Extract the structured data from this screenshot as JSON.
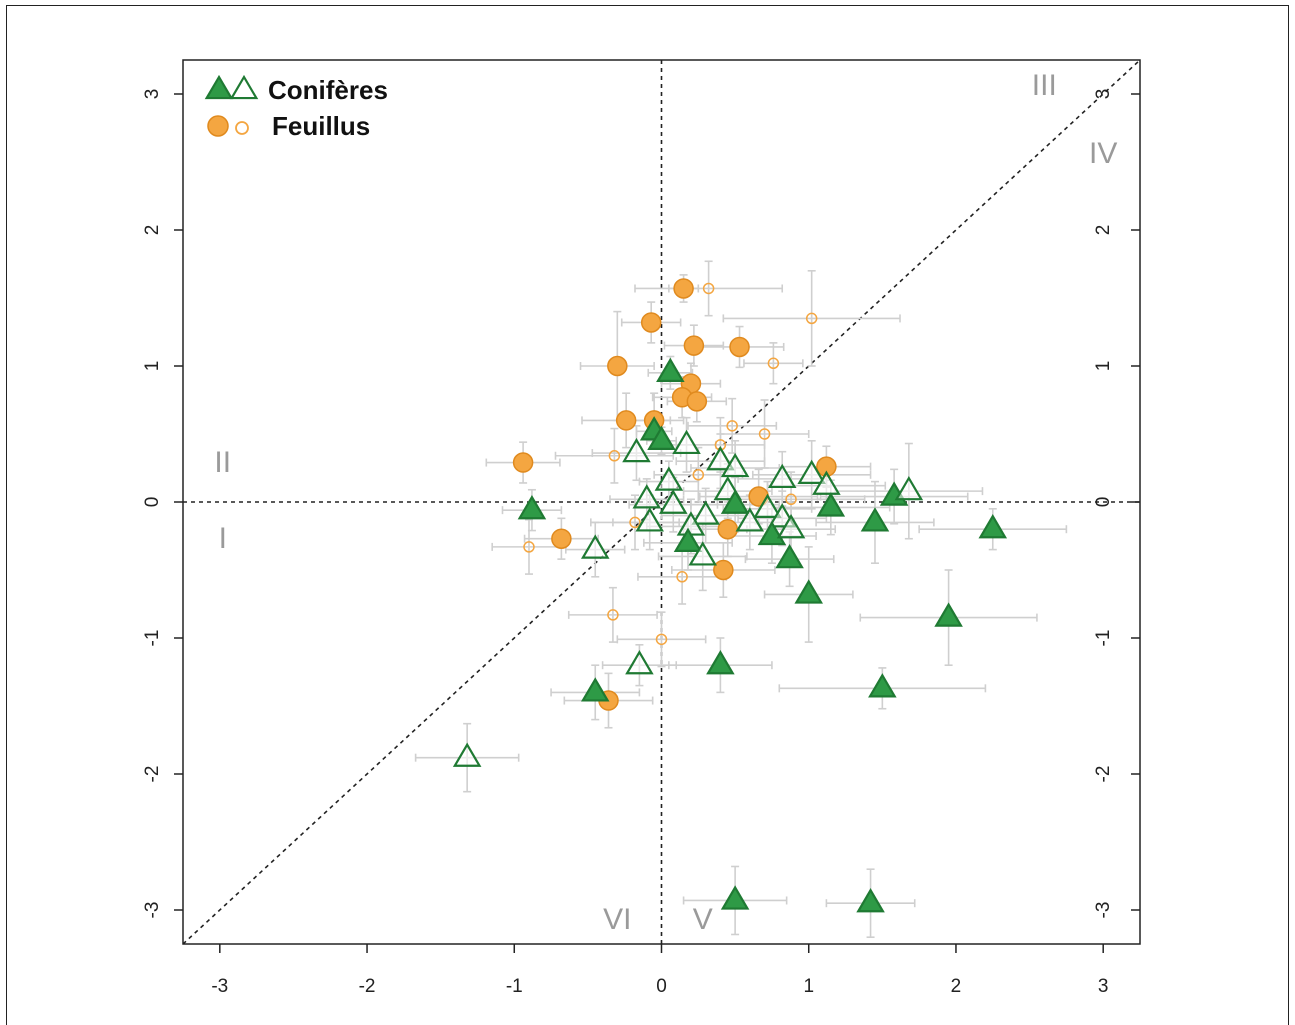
{
  "colors": {
    "conifer": "#2e9a46",
    "conifer_stroke": "#1f7a33",
    "broadleaf": "#f4a641",
    "broadleaf_stroke": "#e08a1e",
    "errorbar": "#cfcfcf",
    "axis": "#222222",
    "region": "#9a9a9a"
  },
  "chart_data": {
    "type": "scatter",
    "title": "",
    "xlabel": "",
    "ylabel": "",
    "xlim": [
      -3.25,
      3.25
    ],
    "ylim": [
      -3.25,
      3.25
    ],
    "x_ticks": [
      -3,
      -2,
      -1,
      0,
      1,
      2,
      3
    ],
    "y_ticks": [
      -3,
      -2,
      -1,
      0,
      1,
      2,
      3
    ],
    "x_tick_labels": [
      "-3",
      "-2",
      "-1",
      "0",
      "1",
      "2",
      "3"
    ],
    "y_tick_labels": [
      "-3",
      "-2",
      "-1",
      "0",
      "1",
      "2",
      "3"
    ],
    "reference_lines": {
      "horizontal_zero": true,
      "vertical_zero": true,
      "diagonal_identity": true
    },
    "grid": false,
    "legend_position": "top-left",
    "legend": [
      {
        "label": "Conifères",
        "markers": [
          "filled-triangle",
          "open-triangle"
        ]
      },
      {
        "label": "Feuillus",
        "markers": [
          "filled-circle",
          "open-circle"
        ]
      }
    ],
    "region_labels": [
      {
        "label": "I",
        "x": -2.98,
        "y": -0.28
      },
      {
        "label": "II",
        "x": -2.98,
        "y": 0.28
      },
      {
        "label": "III",
        "x": 2.6,
        "y": 3.05
      },
      {
        "label": "IV",
        "x": 3.0,
        "y": 2.55
      },
      {
        "label": "V",
        "x": 0.28,
        "y": -3.08
      },
      {
        "label": "VI",
        "x": -0.3,
        "y": -3.08
      }
    ],
    "series": [
      {
        "name": "Conifères",
        "marker": "triangle",
        "points": [
          {
            "x": 0.06,
            "y": 0.95,
            "filled": true,
            "xerr": 0.15,
            "yerr": 0.12
          },
          {
            "x": -0.05,
            "y": 0.52,
            "filled": true,
            "xerr": 0.12,
            "yerr": 0.12
          },
          {
            "x": 0.0,
            "y": 0.45,
            "filled": true,
            "xerr": 0.1,
            "yerr": 0.1
          },
          {
            "x": 0.17,
            "y": 0.42,
            "filled": false,
            "xerr": 0.2,
            "yerr": 0.2
          },
          {
            "x": -0.17,
            "y": 0.36,
            "filled": false,
            "xerr": 0.3,
            "yerr": 0.2
          },
          {
            "x": 0.4,
            "y": 0.3,
            "filled": false,
            "xerr": 0.3,
            "yerr": 0.2
          },
          {
            "x": 0.5,
            "y": 0.25,
            "filled": false,
            "xerr": 0.3,
            "yerr": 0.2
          },
          {
            "x": 0.82,
            "y": 0.17,
            "filled": false,
            "xerr": 0.3,
            "yerr": 0.2
          },
          {
            "x": 1.02,
            "y": 0.2,
            "filled": false,
            "xerr": 0.4,
            "yerr": 0.25
          },
          {
            "x": 1.12,
            "y": 0.12,
            "filled": false,
            "xerr": 0.4,
            "yerr": 0.2
          },
          {
            "x": 0.05,
            "y": 0.15,
            "filled": false,
            "xerr": 0.2,
            "yerr": 0.15
          },
          {
            "x": 0.45,
            "y": 0.08,
            "filled": false,
            "xerr": 0.3,
            "yerr": 0.2
          },
          {
            "x": -0.1,
            "y": 0.02,
            "filled": false,
            "xerr": 0.25,
            "yerr": 0.15
          },
          {
            "x": 0.08,
            "y": -0.02,
            "filled": false,
            "xerr": 0.3,
            "yerr": 0.2
          },
          {
            "x": 0.3,
            "y": -0.1,
            "filled": false,
            "xerr": 0.3,
            "yerr": 0.2
          },
          {
            "x": 0.5,
            "y": -0.02,
            "filled": true,
            "xerr": 0.3,
            "yerr": 0.2
          },
          {
            "x": 0.72,
            "y": -0.05,
            "filled": false,
            "xerr": 0.3,
            "yerr": 0.2
          },
          {
            "x": 0.82,
            "y": -0.12,
            "filled": false,
            "xerr": 0.3,
            "yerr": 0.2
          },
          {
            "x": 0.6,
            "y": -0.15,
            "filled": false,
            "xerr": 0.3,
            "yerr": 0.2
          },
          {
            "x": 1.15,
            "y": -0.04,
            "filled": true,
            "xerr": 0.4,
            "yerr": 0.2
          },
          {
            "x": 1.58,
            "y": 0.04,
            "filled": true,
            "xerr": 0.5,
            "yerr": 0.2
          },
          {
            "x": 1.68,
            "y": 0.08,
            "filled": false,
            "xerr": 0.5,
            "yerr": 0.35
          },
          {
            "x": -0.08,
            "y": -0.15,
            "filled": false,
            "xerr": 0.25,
            "yerr": 0.2
          },
          {
            "x": 0.2,
            "y": -0.18,
            "filled": false,
            "xerr": 0.3,
            "yerr": 0.2
          },
          {
            "x": 0.75,
            "y": -0.25,
            "filled": true,
            "xerr": 0.3,
            "yerr": 0.2
          },
          {
            "x": 0.88,
            "y": -0.2,
            "filled": false,
            "xerr": 0.3,
            "yerr": 0.2
          },
          {
            "x": 1.45,
            "y": -0.15,
            "filled": true,
            "xerr": 0.4,
            "yerr": 0.3
          },
          {
            "x": 2.25,
            "y": -0.2,
            "filled": true,
            "xerr": 0.5,
            "yerr": 0.15
          },
          {
            "x": -0.88,
            "y": -0.06,
            "filled": true,
            "xerr": 0.2,
            "yerr": 0.15
          },
          {
            "x": -0.45,
            "y": -0.35,
            "filled": false,
            "xerr": 0.2,
            "yerr": 0.2
          },
          {
            "x": 0.18,
            "y": -0.3,
            "filled": true,
            "xerr": 0.3,
            "yerr": 0.2
          },
          {
            "x": 0.28,
            "y": -0.4,
            "filled": false,
            "xerr": 0.3,
            "yerr": 0.25
          },
          {
            "x": 0.87,
            "y": -0.42,
            "filled": true,
            "xerr": 0.3,
            "yerr": 0.2
          },
          {
            "x": 1.0,
            "y": -0.68,
            "filled": true,
            "xerr": 0.3,
            "yerr": 0.35
          },
          {
            "x": 1.95,
            "y": -0.85,
            "filled": true,
            "xerr": 0.6,
            "yerr": 0.35
          },
          {
            "x": -0.15,
            "y": -1.2,
            "filled": false,
            "xerr": 0.25,
            "yerr": 0.15
          },
          {
            "x": 0.4,
            "y": -1.2,
            "filled": true,
            "xerr": 0.35,
            "yerr": 0.2
          },
          {
            "x": 1.5,
            "y": -1.37,
            "filled": true,
            "xerr": 0.7,
            "yerr": 0.15
          },
          {
            "x": -0.45,
            "y": -1.4,
            "filled": true,
            "xerr": 0.3,
            "yerr": 0.2
          },
          {
            "x": -1.32,
            "y": -1.88,
            "filled": false,
            "xerr": 0.35,
            "yerr": 0.25
          },
          {
            "x": 0.5,
            "y": -2.93,
            "filled": true,
            "xerr": 0.35,
            "yerr": 0.25
          },
          {
            "x": 1.42,
            "y": -2.95,
            "filled": true,
            "xerr": 0.3,
            "yerr": 0.25
          }
        ]
      },
      {
        "name": "Feuillus",
        "marker": "circle",
        "points": [
          {
            "x": 0.15,
            "y": 1.57,
            "filled": true,
            "xerr": 0.1,
            "yerr": 0.1
          },
          {
            "x": 0.32,
            "y": 1.57,
            "filled": false,
            "xerr": 0.5,
            "yerr": 0.2
          },
          {
            "x": -0.07,
            "y": 1.32,
            "filled": true,
            "xerr": 0.2,
            "yerr": 0.15
          },
          {
            "x": 1.02,
            "y": 1.35,
            "filled": false,
            "xerr": 0.6,
            "yerr": 0.35
          },
          {
            "x": 0.22,
            "y": 1.15,
            "filled": true,
            "xerr": 0.2,
            "yerr": 0.15
          },
          {
            "x": 0.53,
            "y": 1.14,
            "filled": true,
            "xerr": 0.3,
            "yerr": 0.15
          },
          {
            "x": -0.3,
            "y": 1.0,
            "filled": true,
            "xerr": 0.25,
            "yerr": 0.4
          },
          {
            "x": 0.76,
            "y": 1.02,
            "filled": false,
            "xerr": 0.2,
            "yerr": 0.15
          },
          {
            "x": 0.2,
            "y": 0.87,
            "filled": true,
            "xerr": 0.2,
            "yerr": 0.15
          },
          {
            "x": 0.14,
            "y": 0.77,
            "filled": true,
            "xerr": 0.2,
            "yerr": 0.15
          },
          {
            "x": 0.24,
            "y": 0.74,
            "filled": true,
            "xerr": 0.2,
            "yerr": 0.15
          },
          {
            "x": -0.24,
            "y": 0.6,
            "filled": true,
            "xerr": 0.3,
            "yerr": 0.2
          },
          {
            "x": -0.05,
            "y": 0.6,
            "filled": true,
            "xerr": 0.2,
            "yerr": 0.2
          },
          {
            "x": 0.48,
            "y": 0.56,
            "filled": false,
            "xerr": 0.3,
            "yerr": 0.2
          },
          {
            "x": 0.7,
            "y": 0.5,
            "filled": false,
            "xerr": 0.3,
            "yerr": 0.25
          },
          {
            "x": 0.4,
            "y": 0.42,
            "filled": false,
            "xerr": 0.3,
            "yerr": 0.2
          },
          {
            "x": -0.32,
            "y": 0.34,
            "filled": false,
            "xerr": 0.4,
            "yerr": 0.2
          },
          {
            "x": -0.94,
            "y": 0.29,
            "filled": true,
            "xerr": 0.25,
            "yerr": 0.15
          },
          {
            "x": 1.12,
            "y": 0.26,
            "filled": true,
            "xerr": 0.3,
            "yerr": 0.15
          },
          {
            "x": 0.25,
            "y": 0.2,
            "filled": false,
            "xerr": 0.3,
            "yerr": 0.2
          },
          {
            "x": 0.66,
            "y": 0.04,
            "filled": true,
            "xerr": 0.4,
            "yerr": 0.2
          },
          {
            "x": 0.88,
            "y": 0.02,
            "filled": false,
            "xerr": 0.5,
            "yerr": 0.2
          },
          {
            "x": 0.45,
            "y": -0.2,
            "filled": true,
            "xerr": 0.3,
            "yerr": 0.2
          },
          {
            "x": -0.18,
            "y": -0.15,
            "filled": false,
            "xerr": 0.3,
            "yerr": 0.2
          },
          {
            "x": -0.68,
            "y": -0.27,
            "filled": true,
            "xerr": 0.25,
            "yerr": 0.15
          },
          {
            "x": -0.9,
            "y": -0.33,
            "filled": false,
            "xerr": 0.25,
            "yerr": 0.2
          },
          {
            "x": 0.42,
            "y": -0.5,
            "filled": true,
            "xerr": 0.35,
            "yerr": 0.2
          },
          {
            "x": 0.14,
            "y": -0.55,
            "filled": false,
            "xerr": 0.3,
            "yerr": 0.2
          },
          {
            "x": -0.33,
            "y": -0.83,
            "filled": false,
            "xerr": 0.3,
            "yerr": 0.2
          },
          {
            "x": 0.0,
            "y": -1.01,
            "filled": false,
            "xerr": 0.3,
            "yerr": 0.2
          },
          {
            "x": -0.36,
            "y": -1.46,
            "filled": true,
            "xerr": 0.3,
            "yerr": 0.2
          }
        ]
      }
    ]
  }
}
